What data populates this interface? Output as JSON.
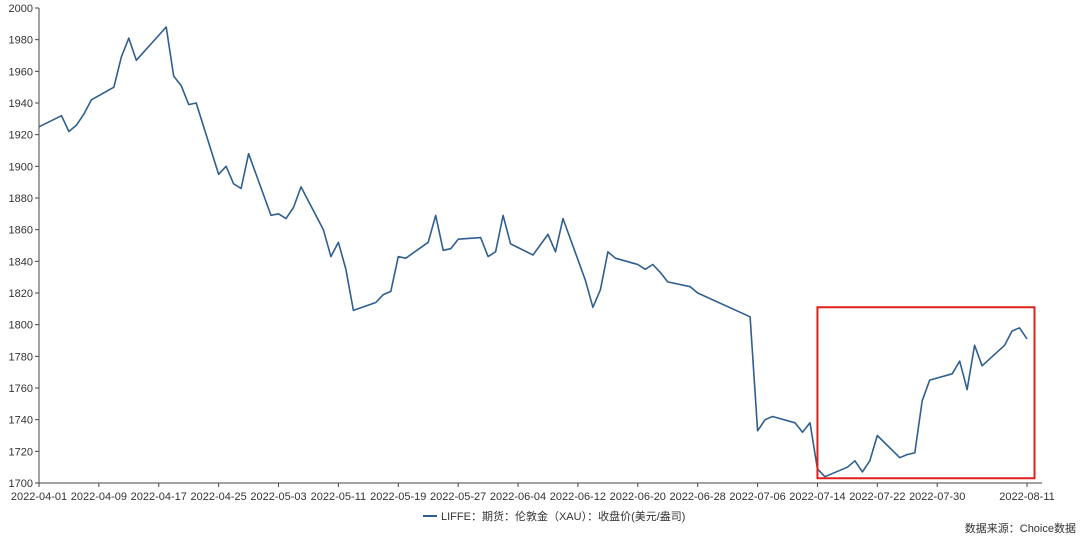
{
  "chart_data": {
    "type": "line",
    "title": "",
    "xlabel": "",
    "ylabel": "",
    "ylim": [
      1700,
      2000
    ],
    "y_ticks": [
      1700,
      1720,
      1740,
      1760,
      1780,
      1800,
      1820,
      1840,
      1860,
      1880,
      1900,
      1920,
      1940,
      1960,
      1980,
      2000
    ],
    "x_tick_labels": [
      "2022-04-01",
      "2022-04-09",
      "2022-04-17",
      "2022-04-25",
      "2022-05-03",
      "2022-05-11",
      "2022-05-19",
      "2022-05-27",
      "2022-06-04",
      "2022-06-12",
      "2022-06-20",
      "2022-06-28",
      "2022-07-06",
      "2022-07-14",
      "2022-07-22",
      "2022-07-30",
      "2022-08-11"
    ],
    "grid": false,
    "legend_position": "bottom-center",
    "line_color": "#2f5f8f",
    "highlight_color": "#e0201a",
    "highlight_range": {
      "x_from": "2022-07-14",
      "x_to": "2022-08-12",
      "y_from": 1703,
      "y_to": 1811
    },
    "series": [
      {
        "name": "LIFFE：期货：伦敦金（XAU）：收盘价(美元/盎司)",
        "points": [
          [
            "2022-04-01",
            1925
          ],
          [
            "2022-04-04",
            1932
          ],
          [
            "2022-04-05",
            1922
          ],
          [
            "2022-04-06",
            1926
          ],
          [
            "2022-04-07",
            1933
          ],
          [
            "2022-04-08",
            1942
          ],
          [
            "2022-04-11",
            1950
          ],
          [
            "2022-04-12",
            1969
          ],
          [
            "2022-04-13",
            1981
          ],
          [
            "2022-04-14",
            1967
          ],
          [
            "2022-04-18",
            1988
          ],
          [
            "2022-04-19",
            1957
          ],
          [
            "2022-04-20",
            1951
          ],
          [
            "2022-04-21",
            1939
          ],
          [
            "2022-04-22",
            1940
          ],
          [
            "2022-04-25",
            1895
          ],
          [
            "2022-04-26",
            1900
          ],
          [
            "2022-04-27",
            1889
          ],
          [
            "2022-04-28",
            1886
          ],
          [
            "2022-04-29",
            1908
          ],
          [
            "2022-05-02",
            1869
          ],
          [
            "2022-05-03",
            1870
          ],
          [
            "2022-05-04",
            1867
          ],
          [
            "2022-05-05",
            1874
          ],
          [
            "2022-05-06",
            1887
          ],
          [
            "2022-05-09",
            1860
          ],
          [
            "2022-05-10",
            1843
          ],
          [
            "2022-05-11",
            1852
          ],
          [
            "2022-05-12",
            1835
          ],
          [
            "2022-05-13",
            1809
          ],
          [
            "2022-05-16",
            1814
          ],
          [
            "2022-05-17",
            1819
          ],
          [
            "2022-05-18",
            1821
          ],
          [
            "2022-05-19",
            1843
          ],
          [
            "2022-05-20",
            1842
          ],
          [
            "2022-05-23",
            1852
          ],
          [
            "2022-05-24",
            1869
          ],
          [
            "2022-05-25",
            1847
          ],
          [
            "2022-05-26",
            1848
          ],
          [
            "2022-05-27",
            1854
          ],
          [
            "2022-05-30",
            1855
          ],
          [
            "2022-05-31",
            1843
          ],
          [
            "2022-06-01",
            1846
          ],
          [
            "2022-06-02",
            1869
          ],
          [
            "2022-06-03",
            1851
          ],
          [
            "2022-06-06",
            1844
          ],
          [
            "2022-06-08",
            1857
          ],
          [
            "2022-06-09",
            1846
          ],
          [
            "2022-06-10",
            1867
          ],
          [
            "2022-06-13",
            1828
          ],
          [
            "2022-06-14",
            1811
          ],
          [
            "2022-06-15",
            1822
          ],
          [
            "2022-06-16",
            1846
          ],
          [
            "2022-06-17",
            1842
          ],
          [
            "2022-06-20",
            1838
          ],
          [
            "2022-06-21",
            1835
          ],
          [
            "2022-06-22",
            1838
          ],
          [
            "2022-06-23",
            1833
          ],
          [
            "2022-06-24",
            1827
          ],
          [
            "2022-06-27",
            1824
          ],
          [
            "2022-06-28",
            1820
          ],
          [
            "2022-07-05",
            1805
          ],
          [
            "2022-07-06",
            1733
          ],
          [
            "2022-07-07",
            1740
          ],
          [
            "2022-07-08",
            1742
          ],
          [
            "2022-07-11",
            1738
          ],
          [
            "2022-07-12",
            1732
          ],
          [
            "2022-07-13",
            1738
          ],
          [
            "2022-07-14",
            1709
          ],
          [
            "2022-07-15",
            1704
          ],
          [
            "2022-07-18",
            1710
          ],
          [
            "2022-07-19",
            1714
          ],
          [
            "2022-07-20",
            1707
          ],
          [
            "2022-07-21",
            1714
          ],
          [
            "2022-07-22",
            1730
          ],
          [
            "2022-07-25",
            1716
          ],
          [
            "2022-07-26",
            1718
          ],
          [
            "2022-07-27",
            1719
          ],
          [
            "2022-07-28",
            1752
          ],
          [
            "2022-07-29",
            1765
          ],
          [
            "2022-08-01",
            1769
          ],
          [
            "2022-08-02",
            1777
          ],
          [
            "2022-08-03",
            1759
          ],
          [
            "2022-08-04",
            1787
          ],
          [
            "2022-08-05",
            1774
          ],
          [
            "2022-08-08",
            1787
          ],
          [
            "2022-08-09",
            1796
          ],
          [
            "2022-08-10",
            1798
          ],
          [
            "2022-08-11",
            1791
          ]
        ]
      }
    ]
  },
  "source_text": "数据来源：Choice数据"
}
